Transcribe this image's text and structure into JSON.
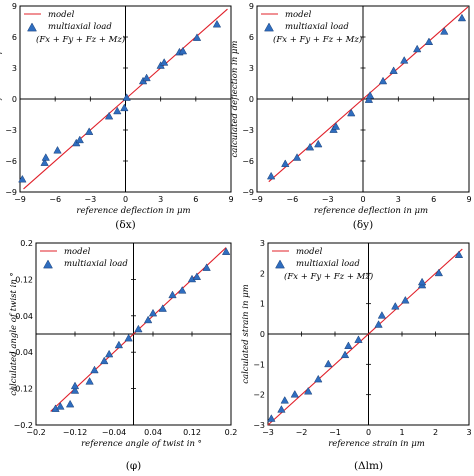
{
  "legend": {
    "model_label": "model",
    "multiaxial_label": "multiaxial load",
    "formula": "(Fx + Fy + Fz + Mz)"
  },
  "colors": {
    "model": "#e0202a",
    "marker": "#2f6dbf",
    "marker_edge": "#1b3f75"
  },
  "chart_data": [
    {
      "type": "scatter",
      "caption": "(δx)",
      "xlabel": "reference deflection in μm",
      "ylabel": "calculated deflection in μm",
      "xlim": [
        -9,
        9
      ],
      "ylim": [
        -9,
        9
      ],
      "xticks": [
        -9,
        -6,
        -3,
        0,
        3,
        6,
        9
      ],
      "xtick_labels": [
        "−9",
        "−6",
        "−3",
        "0",
        "3",
        "6",
        "9"
      ],
      "yticks": [
        -9,
        -6,
        -3,
        0,
        3,
        6,
        9
      ],
      "ytick_labels": [
        "−9",
        "−6",
        "−3",
        "0",
        "3",
        "6",
        "9"
      ],
      "legend_formula": true,
      "model_range": [
        -8.7,
        8.7
      ],
      "series": [
        {
          "name": "model",
          "kind": "line"
        },
        {
          "name": "multiaxial load",
          "kind": "scatter",
          "x": [
            -8.8,
            -6.9,
            -6.8,
            -5.8,
            -4.2,
            -3.9,
            -3.1,
            -1.4,
            -0.7,
            -0.1,
            0.1,
            1.5,
            1.8,
            3.0,
            3.3,
            4.6,
            4.9,
            6.1,
            7.8
          ],
          "y": [
            -7.8,
            -6.2,
            -5.7,
            -5.0,
            -4.3,
            -4.0,
            -3.2,
            -1.7,
            -1.2,
            -0.9,
            0.1,
            1.7,
            2.0,
            3.2,
            3.5,
            4.5,
            4.6,
            5.9,
            7.2
          ]
        }
      ]
    },
    {
      "type": "scatter",
      "caption": "(δy)",
      "xlabel": "reference deflection in μm",
      "ylabel": "calculated deflection in μm",
      "xlim": [
        -9,
        9
      ],
      "ylim": [
        -9,
        9
      ],
      "xticks": [
        -9,
        -6,
        -3,
        0,
        3,
        6,
        9
      ],
      "xtick_labels": [
        "−9",
        "−6",
        "−3",
        "0",
        "3",
        "6",
        "9"
      ],
      "yticks": [
        -9,
        -6,
        -3,
        0,
        3,
        6,
        9
      ],
      "ytick_labels": [
        "−9",
        "−6",
        "−3",
        "0",
        "3",
        "6",
        "9"
      ],
      "legend_formula": true,
      "model_range": [
        -8.0,
        8.9
      ],
      "series": [
        {
          "name": "model",
          "kind": "line"
        },
        {
          "name": "multiaxial load",
          "kind": "scatter",
          "x": [
            -7.8,
            -6.6,
            -5.6,
            -4.5,
            -3.8,
            -2.5,
            -2.3,
            -1.0,
            0.5,
            0.6,
            1.7,
            2.6,
            3.5,
            4.6,
            5.6,
            6.9,
            8.4
          ],
          "y": [
            -7.5,
            -6.3,
            -5.7,
            -4.7,
            -4.4,
            -3.0,
            -2.7,
            -1.4,
            -0.1,
            0.3,
            1.7,
            2.7,
            3.7,
            4.8,
            5.5,
            6.5,
            7.8
          ]
        }
      ]
    },
    {
      "type": "scatter",
      "caption": "(φ)",
      "xlabel": "reference angle of twist in °",
      "ylabel": "calculated angle of twist in °",
      "xlim": [
        -0.2,
        0.2
      ],
      "ylim": [
        -0.2,
        0.2
      ],
      "xticks": [
        -0.2,
        -0.12,
        -0.04,
        0.04,
        0.12,
        0.2
      ],
      "xtick_labels": [
        "−0.2",
        "−0.12",
        "−0.04",
        "0.04",
        "0.12",
        "0.2"
      ],
      "yticks": [
        -0.2,
        -0.12,
        -0.04,
        0.04,
        0.12,
        0.2
      ],
      "ytick_labels": [
        "−0.2",
        "−0.12",
        "−0.04",
        "0.04",
        "0.12",
        "0.2"
      ],
      "legend_formula": false,
      "model_range": [
        -0.17,
        0.19
      ],
      "series": [
        {
          "name": "model",
          "kind": "line"
        },
        {
          "name": "multiaxial load",
          "kind": "scatter",
          "x": [
            -0.16,
            -0.15,
            -0.13,
            -0.12,
            -0.12,
            -0.09,
            -0.08,
            -0.06,
            -0.05,
            -0.03,
            -0.01,
            0.01,
            0.03,
            0.04,
            0.06,
            0.08,
            0.1,
            0.12,
            0.13,
            0.15,
            0.19
          ],
          "y": [
            -0.165,
            -0.16,
            -0.155,
            -0.125,
            -0.115,
            -0.105,
            -0.08,
            -0.06,
            -0.045,
            -0.025,
            -0.01,
            0.01,
            0.03,
            0.045,
            0.055,
            0.085,
            0.095,
            0.12,
            0.125,
            0.145,
            0.18
          ]
        }
      ]
    },
    {
      "type": "scatter",
      "caption": "(Δlm)",
      "xlabel": "reference strain in μm",
      "ylabel": "calculated strain in μm",
      "xlim": [
        -3,
        3
      ],
      "ylim": [
        -3,
        3
      ],
      "xticks": [
        -3,
        -2,
        -1,
        0,
        1,
        2,
        3
      ],
      "xtick_labels": [
        "−3",
        "−2",
        "−1",
        "0",
        "1",
        "2",
        "3"
      ],
      "yticks": [
        -3,
        -2,
        -1,
        0,
        1,
        2,
        3
      ],
      "ytick_labels": [
        "−3",
        "−2",
        "−1",
        "0",
        "1",
        "2",
        "3"
      ],
      "legend_formula": true,
      "model_range": [
        -3.0,
        2.8
      ],
      "series": [
        {
          "name": "model",
          "kind": "line"
        },
        {
          "name": "multiaxial load",
          "kind": "scatter",
          "x": [
            -2.9,
            -2.6,
            -2.5,
            -2.2,
            -1.8,
            -1.5,
            -1.2,
            -0.7,
            -0.6,
            -0.3,
            0.3,
            0.4,
            0.8,
            1.1,
            1.6,
            1.6,
            2.1,
            2.7
          ],
          "y": [
            -2.8,
            -2.5,
            -2.2,
            -2.0,
            -1.9,
            -1.5,
            -1.0,
            -0.7,
            -0.4,
            -0.2,
            0.3,
            0.6,
            0.9,
            1.1,
            1.6,
            1.7,
            2.0,
            2.6
          ]
        }
      ]
    }
  ]
}
